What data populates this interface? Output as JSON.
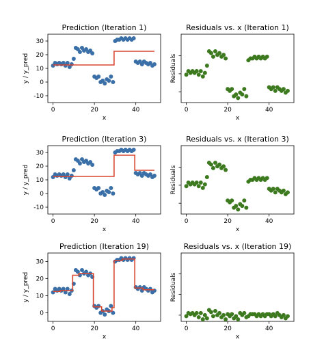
{
  "figure": {
    "background": "#ffffff"
  },
  "colors": {
    "data": "#3a6fa8",
    "prediction": "#d9442e",
    "residual": "#3d7a1f"
  },
  "chart_data": [
    {
      "id": "pred1",
      "type": "scatter",
      "title": "Prediction (Iteration 1)",
      "xlabel": "x",
      "ylabel": "y / y_pred",
      "xlim": [
        -2.5,
        52
      ],
      "ylim": [
        -15,
        35
      ],
      "xticks": [
        0,
        20,
        40
      ],
      "yticks": [
        -10,
        0,
        10,
        20,
        30
      ],
      "points": [
        [
          0,
          12
        ],
        [
          1,
          14
        ],
        [
          2,
          13
        ],
        [
          3,
          14
        ],
        [
          4,
          13
        ],
        [
          5,
          14
        ],
        [
          6,
          12
        ],
        [
          7,
          14
        ],
        [
          8,
          11
        ],
        [
          9,
          13
        ],
        [
          10,
          17
        ],
        [
          11,
          25
        ],
        [
          12,
          24
        ],
        [
          13,
          22
        ],
        [
          14,
          25
        ],
        [
          15,
          23
        ],
        [
          16,
          24
        ],
        [
          17,
          22
        ],
        [
          18,
          23
        ],
        [
          19,
          21
        ],
        [
          20,
          4
        ],
        [
          21,
          3
        ],
        [
          22,
          4
        ],
        [
          23,
          0
        ],
        [
          24,
          1
        ],
        [
          25,
          -1
        ],
        [
          26,
          2
        ],
        [
          27,
          1
        ],
        [
          28,
          4
        ],
        [
          29,
          0
        ],
        [
          30,
          30
        ],
        [
          31,
          31
        ],
        [
          32,
          31
        ],
        [
          33,
          32
        ],
        [
          34,
          31
        ],
        [
          35,
          32
        ],
        [
          36,
          31
        ],
        [
          37,
          32
        ],
        [
          38,
          31
        ],
        [
          39,
          32
        ],
        [
          40,
          15
        ],
        [
          41,
          14
        ],
        [
          42,
          15
        ],
        [
          43,
          13
        ],
        [
          44,
          15
        ],
        [
          45,
          14
        ],
        [
          46,
          13
        ],
        [
          47,
          14
        ],
        [
          48,
          12
        ],
        [
          49,
          13
        ]
      ],
      "prediction": [
        [
          0,
          12.5
        ],
        [
          29.5,
          12.5
        ],
        [
          29.5,
          22.5
        ],
        [
          49,
          22.5
        ]
      ],
      "showYTickLabels": true
    },
    {
      "id": "res1",
      "type": "scatter",
      "title": "Residuals vs. x (Iteration 1)",
      "xlabel": "x",
      "ylabel": "Residuals",
      "xlim": [
        -2.5,
        52
      ],
      "ylim": [
        -16,
        22
      ],
      "xticks": [
        0,
        20,
        40
      ],
      "yticks": [
        -10,
        0,
        10
      ],
      "points": [
        [
          0,
          -0.5
        ],
        [
          1,
          1.5
        ],
        [
          2,
          0.5
        ],
        [
          3,
          1.5
        ],
        [
          4,
          0.5
        ],
        [
          5,
          1.5
        ],
        [
          6,
          -0.5
        ],
        [
          7,
          1.5
        ],
        [
          8,
          -1.5
        ],
        [
          9,
          0.5
        ],
        [
          10,
          4.5
        ],
        [
          11,
          12.5
        ],
        [
          12,
          11.5
        ],
        [
          13,
          9.5
        ],
        [
          14,
          12.5
        ],
        [
          15,
          10.5
        ],
        [
          16,
          11.5
        ],
        [
          17,
          9.5
        ],
        [
          18,
          10.5
        ],
        [
          19,
          8.5
        ],
        [
          20,
          -8.5
        ],
        [
          21,
          -9.5
        ],
        [
          22,
          -8.5
        ],
        [
          23,
          -12.5
        ],
        [
          24,
          -11.5
        ],
        [
          25,
          -13.5
        ],
        [
          26,
          -10.5
        ],
        [
          27,
          -11.5
        ],
        [
          28,
          -8.5
        ],
        [
          29,
          -12.5
        ],
        [
          30,
          7.5
        ],
        [
          31,
          8.5
        ],
        [
          32,
          8.5
        ],
        [
          33,
          9.5
        ],
        [
          34,
          8.5
        ],
        [
          35,
          9.5
        ],
        [
          36,
          8.5
        ],
        [
          37,
          9.5
        ],
        [
          38,
          8.5
        ],
        [
          39,
          9.5
        ],
        [
          40,
          -7.5
        ],
        [
          41,
          -8.5
        ],
        [
          42,
          -7.5
        ],
        [
          43,
          -9.5
        ],
        [
          44,
          -7.5
        ],
        [
          45,
          -8.5
        ],
        [
          46,
          -9.5
        ],
        [
          47,
          -8.5
        ],
        [
          48,
          -10.5
        ],
        [
          49,
          -9.5
        ]
      ],
      "showYTickLabels": false
    },
    {
      "id": "pred3",
      "type": "scatter",
      "title": "Prediction (Iteration 3)",
      "xlabel": "x",
      "ylabel": "y / y_pred",
      "xlim": [
        -2.5,
        52
      ],
      "ylim": [
        -15,
        35
      ],
      "xticks": [
        0,
        20,
        40
      ],
      "yticks": [
        -10,
        0,
        10,
        20,
        30
      ],
      "points": [
        [
          0,
          12
        ],
        [
          1,
          14
        ],
        [
          2,
          13
        ],
        [
          3,
          14
        ],
        [
          4,
          13
        ],
        [
          5,
          14
        ],
        [
          6,
          12
        ],
        [
          7,
          14
        ],
        [
          8,
          11
        ],
        [
          9,
          13
        ],
        [
          10,
          17
        ],
        [
          11,
          25
        ],
        [
          12,
          24
        ],
        [
          13,
          22
        ],
        [
          14,
          25
        ],
        [
          15,
          23
        ],
        [
          16,
          24
        ],
        [
          17,
          22
        ],
        [
          18,
          23
        ],
        [
          19,
          21
        ],
        [
          20,
          4
        ],
        [
          21,
          3
        ],
        [
          22,
          4
        ],
        [
          23,
          0
        ],
        [
          24,
          1
        ],
        [
          25,
          -1
        ],
        [
          26,
          2
        ],
        [
          27,
          1
        ],
        [
          28,
          4
        ],
        [
          29,
          0
        ],
        [
          30,
          30
        ],
        [
          31,
          31
        ],
        [
          32,
          31
        ],
        [
          33,
          32
        ],
        [
          34,
          31
        ],
        [
          35,
          32
        ],
        [
          36,
          31
        ],
        [
          37,
          32
        ],
        [
          38,
          31
        ],
        [
          39,
          32
        ],
        [
          40,
          15
        ],
        [
          41,
          14
        ],
        [
          42,
          15
        ],
        [
          43,
          13
        ],
        [
          44,
          15
        ],
        [
          45,
          14
        ],
        [
          46,
          13
        ],
        [
          47,
          14
        ],
        [
          48,
          12
        ],
        [
          49,
          13
        ]
      ],
      "prediction": [
        [
          0,
          12.5
        ],
        [
          29.5,
          12.5
        ],
        [
          29.5,
          28
        ],
        [
          39.5,
          28
        ],
        [
          39.5,
          17
        ],
        [
          49,
          17
        ]
      ],
      "showYTickLabels": true
    },
    {
      "id": "res3",
      "type": "scatter",
      "title": "Residuals vs. x (Iteration 3)",
      "xlabel": "x",
      "ylabel": "Residuals",
      "xlim": [
        -2.5,
        52
      ],
      "ylim": [
        -16,
        22
      ],
      "xticks": [
        0,
        20,
        40
      ],
      "yticks": [
        -10,
        0,
        10
      ],
      "points": [
        [
          0,
          -0.5
        ],
        [
          1,
          1.5
        ],
        [
          2,
          0.5
        ],
        [
          3,
          1.5
        ],
        [
          4,
          0.5
        ],
        [
          5,
          1.5
        ],
        [
          6,
          -0.5
        ],
        [
          7,
          1.5
        ],
        [
          8,
          -1.5
        ],
        [
          9,
          0.5
        ],
        [
          10,
          4.5
        ],
        [
          11,
          12.5
        ],
        [
          12,
          11.5
        ],
        [
          13,
          9.5
        ],
        [
          14,
          12.5
        ],
        [
          15,
          10.5
        ],
        [
          16,
          11.5
        ],
        [
          17,
          9.5
        ],
        [
          18,
          10.5
        ],
        [
          19,
          8.5
        ],
        [
          20,
          -8.5
        ],
        [
          21,
          -9.5
        ],
        [
          22,
          -8.5
        ],
        [
          23,
          -12.5
        ],
        [
          24,
          -11.5
        ],
        [
          25,
          -13.5
        ],
        [
          26,
          -10.5
        ],
        [
          27,
          -11.5
        ],
        [
          28,
          -8.5
        ],
        [
          29,
          -12.5
        ],
        [
          30,
          2
        ],
        [
          31,
          3
        ],
        [
          32,
          3
        ],
        [
          33,
          4
        ],
        [
          34,
          3
        ],
        [
          35,
          4
        ],
        [
          36,
          3
        ],
        [
          37,
          4
        ],
        [
          38,
          3
        ],
        [
          39,
          4
        ],
        [
          40,
          -2
        ],
        [
          41,
          -3
        ],
        [
          42,
          -2
        ],
        [
          43,
          -4
        ],
        [
          44,
          -2
        ],
        [
          45,
          -3
        ],
        [
          46,
          -4
        ],
        [
          47,
          -3
        ],
        [
          48,
          -5
        ],
        [
          49,
          -4
        ]
      ],
      "showYTickLabels": false
    },
    {
      "id": "pred19",
      "type": "scatter",
      "title": "Prediction (Iteration 19)",
      "xlabel": "x",
      "ylabel": "y / y_pred",
      "xlim": [
        -2.5,
        52
      ],
      "ylim": [
        -5,
        35
      ],
      "xticks": [
        0,
        20,
        40
      ],
      "yticks": [
        0,
        10,
        20,
        30
      ],
      "points": [
        [
          0,
          12
        ],
        [
          1,
          14
        ],
        [
          2,
          13
        ],
        [
          3,
          14
        ],
        [
          4,
          13
        ],
        [
          5,
          14
        ],
        [
          6,
          12
        ],
        [
          7,
          14
        ],
        [
          8,
          11
        ],
        [
          9,
          13
        ],
        [
          10,
          17
        ],
        [
          11,
          25
        ],
        [
          12,
          24
        ],
        [
          13,
          22
        ],
        [
          14,
          25
        ],
        [
          15,
          23
        ],
        [
          16,
          24
        ],
        [
          17,
          22
        ],
        [
          18,
          23
        ],
        [
          19,
          21
        ],
        [
          20,
          4
        ],
        [
          21,
          3
        ],
        [
          22,
          4
        ],
        [
          23,
          0
        ],
        [
          24,
          1
        ],
        [
          25,
          -1
        ],
        [
          26,
          2
        ],
        [
          27,
          1
        ],
        [
          28,
          4
        ],
        [
          29,
          0
        ],
        [
          30,
          30
        ],
        [
          31,
          31
        ],
        [
          32,
          31
        ],
        [
          33,
          32
        ],
        [
          34,
          31
        ],
        [
          35,
          32
        ],
        [
          36,
          31
        ],
        [
          37,
          32
        ],
        [
          38,
          31
        ],
        [
          39,
          32
        ],
        [
          40,
          15
        ],
        [
          41,
          14
        ],
        [
          42,
          15
        ],
        [
          43,
          13
        ],
        [
          44,
          15
        ],
        [
          45,
          14
        ],
        [
          46,
          13
        ],
        [
          47,
          14
        ],
        [
          48,
          12
        ],
        [
          49,
          13
        ]
      ],
      "prediction": [
        [
          0,
          12.5
        ],
        [
          3.5,
          12.5
        ],
        [
          3.5,
          13
        ],
        [
          9.5,
          13
        ],
        [
          9.5,
          22
        ],
        [
          12.5,
          22
        ],
        [
          12.5,
          23
        ],
        [
          19.5,
          23
        ],
        [
          19.5,
          3.5
        ],
        [
          23.5,
          3.5
        ],
        [
          23.5,
          1
        ],
        [
          28.5,
          1
        ],
        [
          28.5,
          3
        ],
        [
          29.5,
          3
        ],
        [
          29.5,
          30.5
        ],
        [
          33.5,
          30.5
        ],
        [
          33.5,
          31.5
        ],
        [
          39.5,
          31.5
        ],
        [
          39.5,
          14.5
        ],
        [
          43.5,
          14.5
        ],
        [
          43.5,
          13.5
        ],
        [
          49,
          13.5
        ]
      ],
      "showYTickLabels": true
    },
    {
      "id": "res19",
      "type": "scatter",
      "title": "Residuals vs. x (Iteration 19)",
      "xlabel": "x",
      "ylabel": "Residuals",
      "xlim": [
        -2.5,
        52
      ],
      "ylim": [
        -3,
        30
      ],
      "xticks": [
        0,
        20,
        40
      ],
      "yticks": [
        0,
        10,
        20
      ],
      "points": [
        [
          0,
          -0.5
        ],
        [
          1,
          1
        ],
        [
          2,
          0.5
        ],
        [
          3,
          1
        ],
        [
          4,
          0
        ],
        [
          5,
          1
        ],
        [
          6,
          -1
        ],
        [
          7,
          1
        ],
        [
          8,
          -2
        ],
        [
          9,
          0
        ],
        [
          10,
          -1.5
        ],
        [
          11,
          2.5
        ],
        [
          12,
          1.5
        ],
        [
          13,
          -0.5
        ],
        [
          14,
          2
        ],
        [
          15,
          0
        ],
        [
          16,
          1
        ],
        [
          17,
          -1
        ],
        [
          18,
          0
        ],
        [
          19,
          -2
        ],
        [
          20,
          0.5
        ],
        [
          21,
          -0.5
        ],
        [
          22,
          0.5
        ],
        [
          23,
          -1.5
        ],
        [
          24,
          -0.5
        ],
        [
          25,
          -2
        ],
        [
          26,
          1
        ],
        [
          27,
          0
        ],
        [
          28,
          1
        ],
        [
          29,
          -1
        ],
        [
          30,
          -0.5
        ],
        [
          31,
          0.5
        ],
        [
          32,
          0.5
        ],
        [
          33,
          0.5
        ],
        [
          34,
          -0.5
        ],
        [
          35,
          0.5
        ],
        [
          36,
          -0.5
        ],
        [
          37,
          0.5
        ],
        [
          38,
          -0.5
        ],
        [
          39,
          0.5
        ],
        [
          40,
          0.5
        ],
        [
          41,
          -0.5
        ],
        [
          42,
          0.5
        ],
        [
          43,
          -0.5
        ],
        [
          44,
          1
        ],
        [
          45,
          0
        ],
        [
          46,
          -1
        ],
        [
          47,
          0
        ],
        [
          48,
          -1.5
        ],
        [
          49,
          -0.5
        ]
      ],
      "showYTickLabels": false
    }
  ]
}
